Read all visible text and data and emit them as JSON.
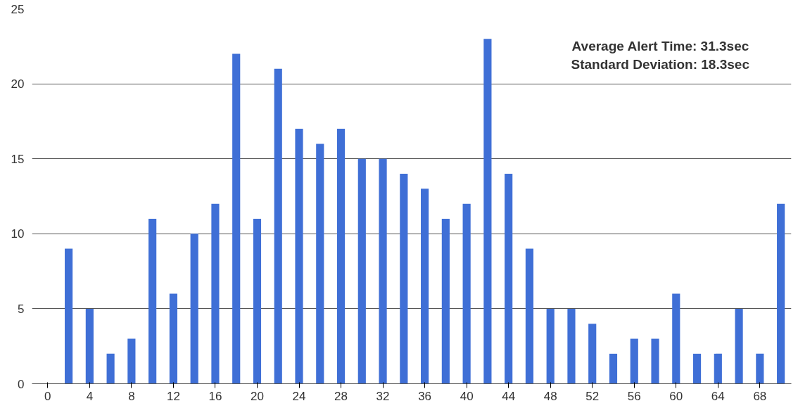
{
  "chart_data": {
    "type": "bar",
    "x": [
      2,
      4,
      6,
      8,
      10,
      12,
      14,
      16,
      18,
      20,
      22,
      24,
      26,
      28,
      30,
      32,
      34,
      36,
      38,
      40,
      42,
      44,
      46,
      48,
      50,
      52,
      54,
      56,
      58,
      60,
      62,
      64,
      66,
      68,
      70
    ],
    "values": [
      9,
      5,
      2,
      3,
      11,
      6,
      10,
      12,
      22,
      11,
      21,
      17,
      16,
      17,
      15,
      15,
      14,
      13,
      11,
      12,
      23,
      14,
      9,
      5,
      5,
      4,
      2,
      3,
      3,
      6,
      2,
      2,
      5,
      2,
      12
    ],
    "color": "#3f6fd6",
    "xlim": [
      -1.5,
      71
    ],
    "xticks": [
      0,
      4,
      8,
      12,
      16,
      20,
      24,
      28,
      32,
      36,
      40,
      44,
      48,
      52,
      56,
      60,
      64,
      68
    ],
    "ylim": [
      0,
      25
    ],
    "yticks": [
      0,
      5,
      10,
      15,
      20,
      25
    ],
    "grid": "y",
    "annotations": [
      "Average Alert Time: 31.3sec",
      "Standard Deviation: 18.3sec"
    ]
  }
}
